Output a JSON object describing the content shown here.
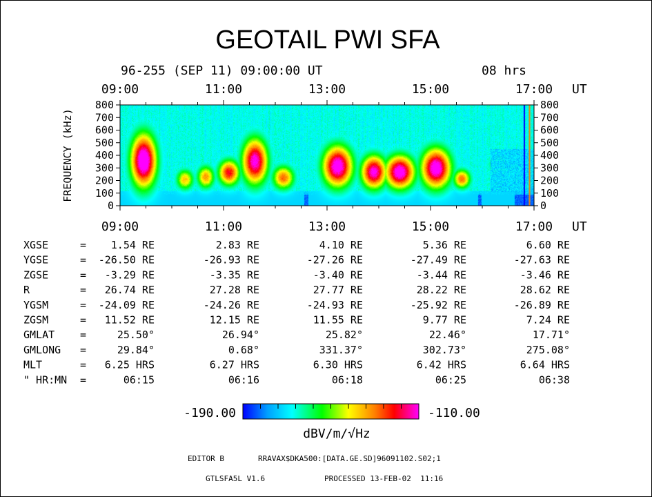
{
  "header": {
    "title": "GEOTAIL PWI SFA",
    "date_line": "96-255 (SEP 11) 09:00:00 UT",
    "duration": "08 hrs"
  },
  "chart_data": {
    "type": "heatmap",
    "title": "GEOTAIL PWI SFA",
    "xlabel": "UT",
    "ylabel": "FREQUENCY (kHz)",
    "x_tick_labels": [
      "09:00",
      "11:00",
      "13:00",
      "15:00",
      "17:00"
    ],
    "x_unit": "UT",
    "y_ticks": [
      0,
      100,
      200,
      300,
      400,
      500,
      600,
      700,
      800
    ],
    "xlim": [
      "09:00",
      "17:00"
    ],
    "ylim": [
      0,
      800
    ],
    "colorbar": {
      "min": -190.0,
      "max": -110.0,
      "min_label": "-190.00",
      "max_label": "-110.00",
      "unit": "dBV/m/√Hz"
    },
    "colors": [
      "#0000ff",
      "#00c0ff",
      "#00ffff",
      "#00ff00",
      "#ffff00",
      "#ff8000",
      "#ff0000",
      "#ff00ff"
    ],
    "intensity_bursts": [
      {
        "center_ut": 9.45,
        "width_h": 0.3,
        "fmin": 120,
        "fmax": 600,
        "peak": 0.9
      },
      {
        "center_ut": 10.25,
        "width_h": 0.2,
        "fmin": 120,
        "fmax": 300,
        "peak": 0.45
      },
      {
        "center_ut": 10.65,
        "width_h": 0.2,
        "fmin": 130,
        "fmax": 330,
        "peak": 0.5
      },
      {
        "center_ut": 11.1,
        "width_h": 0.25,
        "fmin": 150,
        "fmax": 380,
        "peak": 0.65
      },
      {
        "center_ut": 11.6,
        "width_h": 0.3,
        "fmin": 150,
        "fmax": 560,
        "peak": 0.8
      },
      {
        "center_ut": 12.15,
        "width_h": 0.25,
        "fmin": 120,
        "fmax": 330,
        "peak": 0.55
      },
      {
        "center_ut": 13.2,
        "width_h": 0.35,
        "fmin": 130,
        "fmax": 500,
        "peak": 0.85
      },
      {
        "center_ut": 13.9,
        "width_h": 0.3,
        "fmin": 120,
        "fmax": 420,
        "peak": 0.8
      },
      {
        "center_ut": 14.4,
        "width_h": 0.35,
        "fmin": 120,
        "fmax": 420,
        "peak": 0.85
      },
      {
        "center_ut": 15.1,
        "width_h": 0.35,
        "fmin": 120,
        "fmax": 480,
        "peak": 0.85
      },
      {
        "center_ut": 15.6,
        "width_h": 0.2,
        "fmin": 130,
        "fmax": 300,
        "peak": 0.55
      },
      {
        "center_ut": 16.3,
        "width_h": 0.2,
        "fmin": 250,
        "fmax": 400,
        "peak": 0.35
      }
    ]
  },
  "ephemeris": {
    "rows": [
      {
        "name": "XGSE",
        "eq": "=",
        "values": [
          "1.54 RE",
          "2.83 RE",
          "4.10 RE",
          "5.36 RE",
          "6.60 RE"
        ]
      },
      {
        "name": "YGSE",
        "eq": "=",
        "values": [
          "-26.50 RE",
          "-26.93 RE",
          "-27.26 RE",
          "-27.49 RE",
          "-27.63 RE"
        ]
      },
      {
        "name": "ZGSE",
        "eq": "=",
        "values": [
          "-3.29 RE",
          "-3.35 RE",
          "-3.40 RE",
          "-3.44 RE",
          "-3.46 RE"
        ]
      },
      {
        "name": "R",
        "eq": "=",
        "values": [
          "26.74 RE",
          "27.28 RE",
          "27.77 RE",
          "28.22 RE",
          "28.62 RE"
        ]
      },
      {
        "name": "YGSM",
        "eq": "=",
        "values": [
          "-24.09 RE",
          "-24.26 RE",
          "-24.93 RE",
          "-25.92 RE",
          "-26.89 RE"
        ]
      },
      {
        "name": "ZGSM",
        "eq": "=",
        "values": [
          "11.52 RE",
          "12.15 RE",
          "11.55 RE",
          "9.77 RE",
          "7.24 RE"
        ]
      },
      {
        "name": "GMLAT",
        "eq": "=",
        "values": [
          "25.50°",
          "26.94°",
          "25.82°",
          "22.46°",
          "17.71°"
        ]
      },
      {
        "name": "GMLONG",
        "eq": "=",
        "values": [
          "29.84°",
          "0.68°",
          "331.37°",
          "302.73°",
          "275.08°"
        ]
      },
      {
        "name": "MLT",
        "eq": "=",
        "values": [
          "6.25 HRS",
          "6.27 HRS",
          "6.30 HRS",
          "6.42 HRS",
          "6.64 HRS"
        ]
      },
      {
        "name": "\" HR:MN",
        "eq": "=",
        "values": [
          "06:15",
          "06:16",
          "06:18",
          "06:25",
          "06:38"
        ]
      }
    ]
  },
  "footer": {
    "editor": "EDITOR B",
    "path": "RRAVAX$DKA500:[DATA.GE.SD]96091102.S02;1",
    "version": "GTLSFA5L V1.6",
    "processed": "PROCESSED 13-FEB-02  11:16"
  }
}
